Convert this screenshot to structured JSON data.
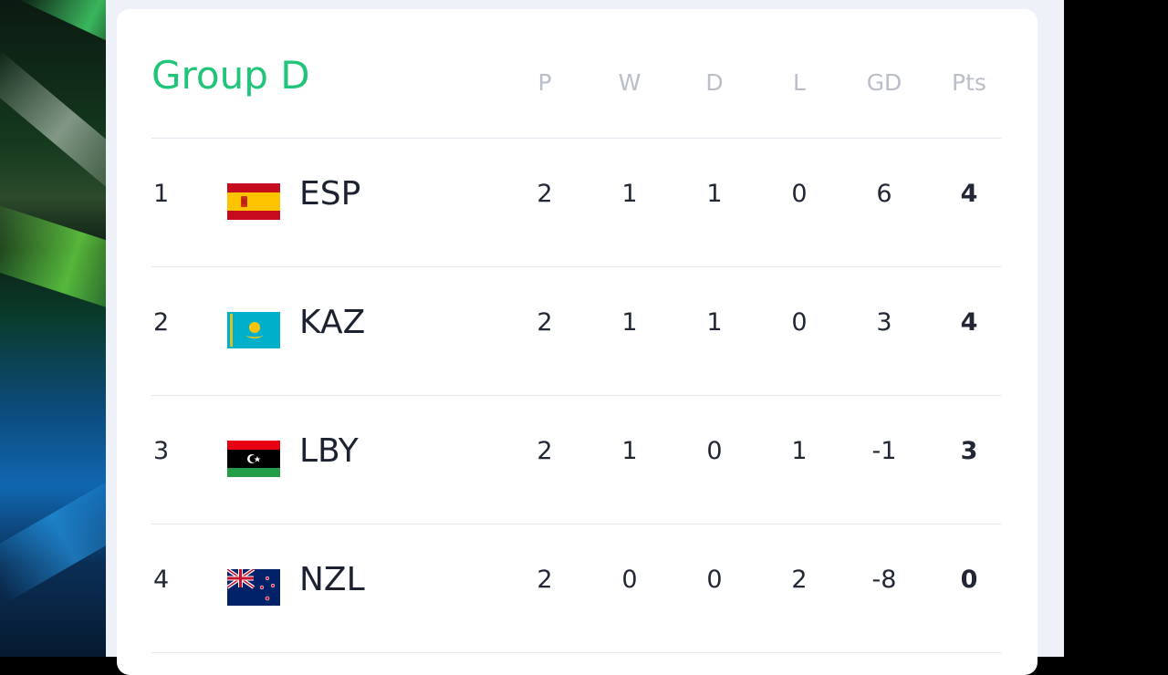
{
  "group": {
    "title": "Group D"
  },
  "columns": {
    "p": "P",
    "w": "W",
    "d": "D",
    "l": "L",
    "gd": "GD",
    "pts": "Pts"
  },
  "rows": [
    {
      "pos": "1",
      "team": "ESP",
      "flag": "spain-flag-icon",
      "p": "2",
      "w": "1",
      "d": "1",
      "l": "0",
      "gd": "6",
      "pts": "4"
    },
    {
      "pos": "2",
      "team": "KAZ",
      "flag": "kazakhstan-flag-icon",
      "p": "2",
      "w": "1",
      "d": "1",
      "l": "0",
      "gd": "3",
      "pts": "4"
    },
    {
      "pos": "3",
      "team": "LBY",
      "flag": "libya-flag-icon",
      "p": "2",
      "w": "1",
      "d": "0",
      "l": "1",
      "gd": "-1",
      "pts": "3"
    },
    {
      "pos": "4",
      "team": "NZL",
      "flag": "new-zealand-flag-icon",
      "p": "2",
      "w": "0",
      "d": "0",
      "l": "2",
      "gd": "-8",
      "pts": "0"
    }
  ],
  "colors": {
    "title": "#21c57a",
    "header": "#b9bec8",
    "text": "#222735",
    "panel": "#eef1f7",
    "card": "#ffffff"
  }
}
